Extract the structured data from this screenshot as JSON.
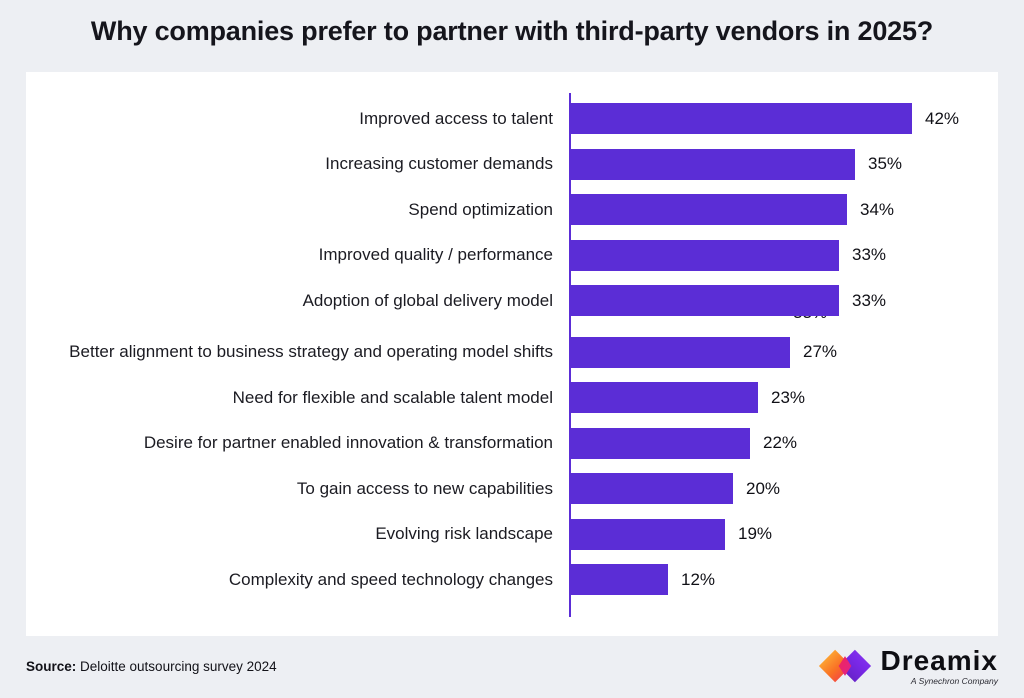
{
  "page": {
    "title": "Why companies prefer to partner with third-party vendors in 2025?",
    "background_color": "#edeff3",
    "card_color": "#ffffff"
  },
  "chart_data": {
    "type": "bar",
    "orientation": "horizontal",
    "categories": [
      "Improved access to talent",
      "Increasing customer demands",
      "Spend optimization",
      "Improved quality / performance",
      "Adoption of global delivery model",
      "Better alignment to business strategy and operating model shifts",
      "Need for flexible and scalable talent model",
      "Desire for partner enabled innovation & transformation",
      "To gain access to new capabilities",
      "Evolving risk landscape",
      "Complexity and speed technology changes"
    ],
    "values": [
      42,
      35,
      34,
      33,
      33,
      27,
      23,
      22,
      20,
      19,
      12
    ],
    "value_suffix": "%",
    "value_labels": [
      "42%",
      "35%",
      "34%",
      "33%",
      "33%",
      "27%",
      "23%",
      "22%",
      "20%",
      "19%",
      "12%"
    ],
    "xlim": [
      0,
      45
    ],
    "grid": false,
    "legend": null,
    "bar_color": "#5b2dd6",
    "axis_color": "#5b2dd6",
    "artifact_label": "33%",
    "artifact_row_index": 4
  },
  "footer": {
    "source_label": "Source:",
    "source_text": " Deloitte outsourcing survey 2024",
    "logo": {
      "brand": "Dreamix",
      "tagline": "A Synechron Company",
      "mark_colors": {
        "yellow": "#ffc83d",
        "orange": "#f97125",
        "red": "#f0275a",
        "pink": "#e0218a",
        "violet": "#7a28e8",
        "purple": "#5b21b6"
      }
    }
  }
}
